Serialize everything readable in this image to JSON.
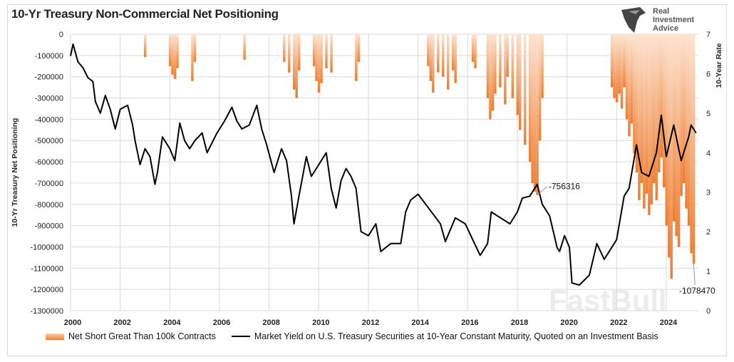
{
  "title": "10-Yr Treasury Non-Commercial Net Positioning",
  "logo": {
    "lines": [
      "Real",
      "Investment",
      "Advice"
    ]
  },
  "watermark": "FastBull",
  "colors": {
    "bars_top": "#fde3d0",
    "bars_bottom": "#ed7d31",
    "line": "#000000",
    "grid": "#d9d9d9"
  },
  "chart_data": {
    "type": "bar+line",
    "title": "10-Yr Treasury Non-Commercial Net Positioning",
    "ylabel": "10-Yr Treasury Net Positioning",
    "y2label": "10-Year Rate",
    "xlim": [
      2000,
      2025.3
    ],
    "ylim": [
      -1300000,
      0
    ],
    "y2lim": [
      0,
      7
    ],
    "grid": true,
    "legend_placement": "bottom",
    "x_ticks": [
      "2000",
      "2002",
      "2004",
      "2006",
      "2008",
      "2010",
      "2012",
      "2014",
      "2016",
      "2018",
      "2020",
      "2022",
      "2024"
    ],
    "y_ticks": [
      "0",
      "-100000",
      "-200000",
      "-300000",
      "-400000",
      "-500000",
      "-600000",
      "-700000",
      "-800000",
      "-900000",
      "-1000000",
      "-1100000",
      "-1200000",
      "-1300000"
    ],
    "y2_ticks": [
      "0",
      "1",
      "2",
      "3",
      "4",
      "5",
      "6",
      "7"
    ],
    "annotations": [
      {
        "text": "-756316",
        "x": 2018.8,
        "y": -756316
      },
      {
        "text": "-1078470",
        "x": 2025.1,
        "y": -1078470
      }
    ],
    "series": [
      {
        "name": "Net Short Great Than 100k Contracts",
        "type": "bar",
        "axis": "left",
        "points": [
          [
            2003.0,
            -107000
          ],
          [
            2004.0,
            -150000
          ],
          [
            2004.1,
            -190000
          ],
          [
            2004.2,
            -210000
          ],
          [
            2004.3,
            -160000
          ],
          [
            2004.9,
            -220000
          ],
          [
            2005.0,
            -130000
          ],
          [
            2007.0,
            -120000
          ],
          [
            2008.6,
            -130000
          ],
          [
            2008.8,
            -180000
          ],
          [
            2009.0,
            -260000
          ],
          [
            2009.1,
            -300000
          ],
          [
            2009.2,
            -170000
          ],
          [
            2009.8,
            -150000
          ],
          [
            2009.9,
            -220000
          ],
          [
            2010.0,
            -275000
          ],
          [
            2010.1,
            -230000
          ],
          [
            2010.3,
            -160000
          ],
          [
            2010.5,
            -180000
          ],
          [
            2011.5,
            -220000
          ],
          [
            2011.6,
            -130000
          ],
          [
            2014.4,
            -150000
          ],
          [
            2014.5,
            -220000
          ],
          [
            2014.6,
            -275000
          ],
          [
            2014.8,
            -180000
          ],
          [
            2015.0,
            -200000
          ],
          [
            2015.2,
            -260000
          ],
          [
            2015.4,
            -170000
          ],
          [
            2015.5,
            -230000
          ],
          [
            2016.2,
            -130000
          ],
          [
            2016.3,
            -160000
          ],
          [
            2016.8,
            -300000
          ],
          [
            2016.9,
            -400000
          ],
          [
            2017.0,
            -360000
          ],
          [
            2017.1,
            -280000
          ],
          [
            2017.3,
            -250000
          ],
          [
            2017.5,
            -330000
          ],
          [
            2017.6,
            -200000
          ],
          [
            2017.8,
            -300000
          ],
          [
            2018.0,
            -380000
          ],
          [
            2018.1,
            -450000
          ],
          [
            2018.3,
            -520000
          ],
          [
            2018.5,
            -600000
          ],
          [
            2018.6,
            -700000
          ],
          [
            2018.7,
            -740000
          ],
          [
            2018.8,
            -756316
          ],
          [
            2018.9,
            -500000
          ],
          [
            2019.0,
            -300000
          ],
          [
            2021.8,
            -250000
          ],
          [
            2021.9,
            -300000
          ],
          [
            2022.0,
            -320000
          ],
          [
            2022.1,
            -280000
          ],
          [
            2022.2,
            -350000
          ],
          [
            2022.3,
            -250000
          ],
          [
            2022.4,
            -400000
          ],
          [
            2022.5,
            -480000
          ],
          [
            2022.6,
            -420000
          ],
          [
            2022.7,
            -560000
          ],
          [
            2022.8,
            -650000
          ],
          [
            2022.9,
            -780000
          ],
          [
            2023.0,
            -700000
          ],
          [
            2023.1,
            -820000
          ],
          [
            2023.2,
            -750000
          ],
          [
            2023.3,
            -850000
          ],
          [
            2023.4,
            -800000
          ],
          [
            2023.5,
            -700000
          ],
          [
            2023.6,
            -780000
          ],
          [
            2023.7,
            -650000
          ],
          [
            2023.8,
            -580000
          ],
          [
            2023.9,
            -720000
          ],
          [
            2024.0,
            -900000
          ],
          [
            2024.1,
            -1050000
          ],
          [
            2024.2,
            -1150000
          ],
          [
            2024.3,
            -880000
          ],
          [
            2024.4,
            -950000
          ],
          [
            2024.5,
            -1000000
          ],
          [
            2024.6,
            -760000
          ],
          [
            2024.7,
            -700000
          ],
          [
            2024.8,
            -820000
          ],
          [
            2024.9,
            -900000
          ],
          [
            2025.0,
            -1030000
          ],
          [
            2025.1,
            -1078470
          ]
        ]
      },
      {
        "name": "Market Yield on U.S. Treasury Securities at 10-Year Constant Maturity, Quoted on an Investment Basis",
        "type": "line",
        "axis": "right",
        "points": [
          [
            2000.0,
            6.45
          ],
          [
            2000.1,
            6.75
          ],
          [
            2000.3,
            6.3
          ],
          [
            2000.5,
            6.15
          ],
          [
            2000.7,
            5.9
          ],
          [
            2000.9,
            5.8
          ],
          [
            2001.0,
            5.3
          ],
          [
            2001.2,
            5.0
          ],
          [
            2001.4,
            5.45
          ],
          [
            2001.6,
            5.1
          ],
          [
            2001.8,
            4.6
          ],
          [
            2002.0,
            5.1
          ],
          [
            2002.3,
            5.2
          ],
          [
            2002.5,
            4.7
          ],
          [
            2002.6,
            4.3
          ],
          [
            2002.8,
            3.7
          ],
          [
            2003.0,
            4.1
          ],
          [
            2003.2,
            3.9
          ],
          [
            2003.4,
            3.2
          ],
          [
            2003.5,
            3.5
          ],
          [
            2003.7,
            4.4
          ],
          [
            2004.0,
            4.1
          ],
          [
            2004.2,
            3.8
          ],
          [
            2004.4,
            4.75
          ],
          [
            2004.6,
            4.3
          ],
          [
            2004.8,
            4.1
          ],
          [
            2005.0,
            4.3
          ],
          [
            2005.3,
            4.5
          ],
          [
            2005.5,
            4.0
          ],
          [
            2005.9,
            4.5
          ],
          [
            2006.2,
            4.8
          ],
          [
            2006.5,
            5.15
          ],
          [
            2006.7,
            4.8
          ],
          [
            2006.9,
            4.6
          ],
          [
            2007.2,
            4.7
          ],
          [
            2007.5,
            5.2
          ],
          [
            2007.7,
            4.6
          ],
          [
            2007.9,
            4.2
          ],
          [
            2008.2,
            3.5
          ],
          [
            2008.5,
            4.1
          ],
          [
            2008.7,
            3.8
          ],
          [
            2008.9,
            2.9
          ],
          [
            2009.0,
            2.2
          ],
          [
            2009.2,
            2.9
          ],
          [
            2009.5,
            3.9
          ],
          [
            2009.7,
            3.4
          ],
          [
            2009.9,
            3.6
          ],
          [
            2010.3,
            4.0
          ],
          [
            2010.5,
            3.1
          ],
          [
            2010.7,
            2.6
          ],
          [
            2010.9,
            3.3
          ],
          [
            2011.1,
            3.6
          ],
          [
            2011.3,
            3.4
          ],
          [
            2011.5,
            3.1
          ],
          [
            2011.7,
            2.0
          ],
          [
            2012.0,
            1.9
          ],
          [
            2012.3,
            2.2
          ],
          [
            2012.5,
            1.5
          ],
          [
            2012.9,
            1.7
          ],
          [
            2013.3,
            1.7
          ],
          [
            2013.5,
            2.5
          ],
          [
            2013.7,
            2.8
          ],
          [
            2014.0,
            2.95
          ],
          [
            2014.3,
            2.7
          ],
          [
            2014.6,
            2.45
          ],
          [
            2014.9,
            2.2
          ],
          [
            2015.1,
            1.75
          ],
          [
            2015.5,
            2.35
          ],
          [
            2015.9,
            2.2
          ],
          [
            2016.2,
            1.8
          ],
          [
            2016.5,
            1.4
          ],
          [
            2016.8,
            1.7
          ],
          [
            2016.95,
            2.5
          ],
          [
            2017.2,
            2.4
          ],
          [
            2017.7,
            2.2
          ],
          [
            2018.0,
            2.5
          ],
          [
            2018.2,
            2.85
          ],
          [
            2018.5,
            2.9
          ],
          [
            2018.8,
            3.2
          ],
          [
            2019.0,
            2.7
          ],
          [
            2019.3,
            2.4
          ],
          [
            2019.6,
            1.6
          ],
          [
            2019.7,
            1.5
          ],
          [
            2019.9,
            1.9
          ],
          [
            2020.1,
            1.6
          ],
          [
            2020.2,
            0.7
          ],
          [
            2020.5,
            0.65
          ],
          [
            2020.9,
            0.9
          ],
          [
            2021.2,
            1.7
          ],
          [
            2021.5,
            1.3
          ],
          [
            2021.8,
            1.6
          ],
          [
            2022.0,
            1.8
          ],
          [
            2022.3,
            2.9
          ],
          [
            2022.5,
            3.1
          ],
          [
            2022.8,
            4.2
          ],
          [
            2023.0,
            3.5
          ],
          [
            2023.3,
            3.4
          ],
          [
            2023.6,
            4.0
          ],
          [
            2023.8,
            4.95
          ],
          [
            2024.0,
            3.9
          ],
          [
            2024.3,
            4.7
          ],
          [
            2024.6,
            3.8
          ],
          [
            2024.9,
            4.4
          ],
          [
            2025.0,
            4.7
          ],
          [
            2025.2,
            4.5
          ]
        ]
      }
    ]
  }
}
